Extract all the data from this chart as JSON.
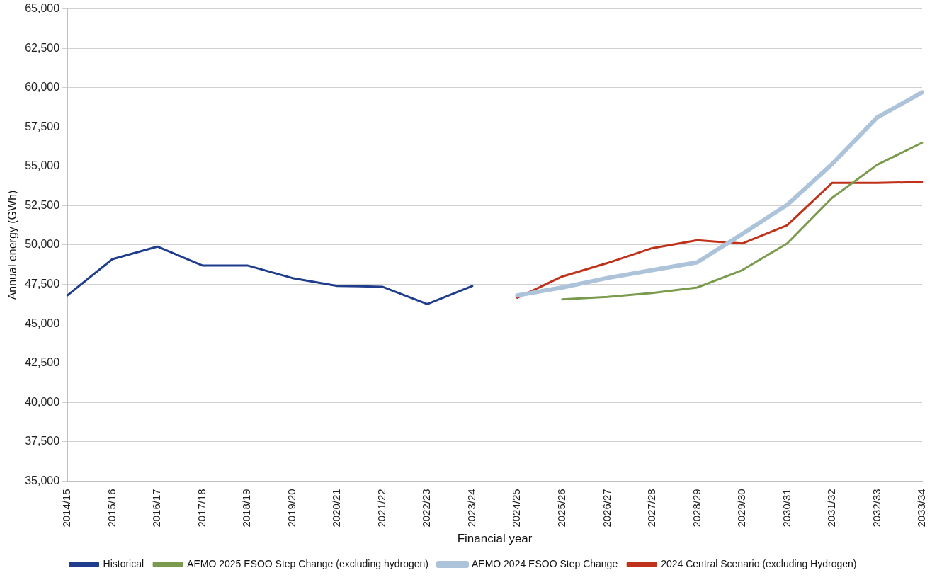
{
  "chart_data": {
    "type": "line",
    "xlabel": "Financial year",
    "ylabel": "Annual energy (GWh)",
    "categories": [
      "2014/15",
      "2015/16",
      "2016/17",
      "2017/18",
      "2018/19",
      "2019/20",
      "2020/21",
      "2021/22",
      "2022/23",
      "2023/24",
      "2024/25",
      "2025/26",
      "2026/27",
      "2027/28",
      "2028/29",
      "2029/30",
      "2030/31",
      "2031/32",
      "2032/33",
      "2033/34"
    ],
    "series": [
      {
        "name": "Historical",
        "color": "#1f3d8c",
        "values": [
          46800,
          49100,
          49900,
          48700,
          48700,
          47900,
          47400,
          47350,
          46250,
          47400,
          null,
          null,
          null,
          null,
          null,
          null,
          null,
          null,
          null,
          null
        ]
      },
      {
        "name": "AEMO 2025 ESOO Step Change (excluding hydrogen)",
        "color": "#7a9a4e",
        "values": [
          null,
          null,
          null,
          null,
          null,
          null,
          null,
          null,
          null,
          null,
          null,
          46550,
          46700,
          46950,
          47300,
          48400,
          50100,
          53000,
          55100,
          56500
        ]
      },
      {
        "name": "AEMO 2024 ESOO Step Change",
        "color": "#adc3d9",
        "values": [
          null,
          null,
          null,
          null,
          null,
          null,
          null,
          null,
          null,
          null,
          46800,
          47300,
          47900,
          48400,
          48900,
          50700,
          52550,
          55150,
          58100,
          59700
        ]
      },
      {
        "name": "2024 Central Scenario (excluding Hydrogen)",
        "color": "#c0311a",
        "values": [
          null,
          null,
          null,
          null,
          null,
          null,
          null,
          null,
          null,
          null,
          46650,
          48000,
          48850,
          49800,
          50300,
          50100,
          51250,
          53950,
          53950,
          54000
        ]
      }
    ],
    "ylim": [
      35000,
      65000
    ],
    "yticks": [
      {
        "value": 35000,
        "label": "35,000"
      },
      {
        "value": 37500,
        "label": "37,500"
      },
      {
        "value": 40000,
        "label": "40,000"
      },
      {
        "value": 42500,
        "label": "42,500"
      },
      {
        "value": 45000,
        "label": "45,000"
      },
      {
        "value": 47500,
        "label": "47,500"
      },
      {
        "value": 50000,
        "label": "50,000"
      },
      {
        "value": 52500,
        "label": "52,500"
      },
      {
        "value": 55000,
        "label": "55,000"
      },
      {
        "value": 57500,
        "label": "57,500"
      },
      {
        "value": 60000,
        "label": "60,000"
      },
      {
        "value": 62500,
        "label": "62,500"
      },
      {
        "value": 65000,
        "label": "65,000"
      }
    ],
    "grid": "y",
    "legend": "bottom",
    "marker": "none",
    "line_style": "solid"
  }
}
